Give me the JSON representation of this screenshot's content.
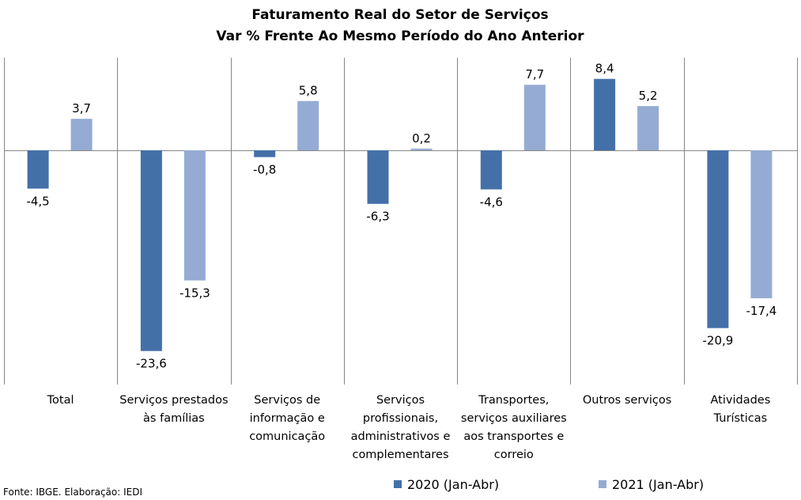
{
  "chart_data": {
    "type": "bar",
    "title": [
      "Faturamento Real do Setor de Serviços",
      "Var % Frente Ao Mesmo Período do Ano Anterior"
    ],
    "categories": [
      [
        "Total"
      ],
      [
        "Serviços prestados",
        "às famílias"
      ],
      [
        "Serviços de",
        "informação e",
        "comunicação"
      ],
      [
        "Serviços",
        "profissionais,",
        "administrativos e",
        "complementares"
      ],
      [
        "Transportes,",
        "serviços auxiliares",
        "aos transportes e",
        "correio"
      ],
      [
        "Outros serviços"
      ],
      [
        "Atividades",
        "Turísticas"
      ]
    ],
    "series": [
      {
        "name": "2020 (Jan-Abr)",
        "color": "#4470A8",
        "values": [
          -4.5,
          -23.6,
          -0.8,
          -6.3,
          -4.6,
          8.4,
          -20.9
        ],
        "labels": [
          "-4,5",
          "-23,6",
          "-0,8",
          "-6,3",
          "-4,6",
          "8,4",
          "-20,9"
        ]
      },
      {
        "name": "2021 (Jan-Abr)",
        "color": "#95ABD3",
        "values": [
          3.7,
          -15.3,
          5.8,
          0.2,
          7.7,
          5.2,
          -17.4
        ],
        "labels": [
          "3,7",
          "-15,3",
          "5,8",
          "0,2",
          "7,7",
          "5,2",
          "-17,4"
        ]
      }
    ],
    "ylim": [
      -26,
      11
    ],
    "grid": false,
    "legend_position": "bottom-right",
    "source": "Fonte: IBGE. Elaboração: IEDI",
    "gridline_color": "#868686",
    "axis_color": "#868686"
  }
}
